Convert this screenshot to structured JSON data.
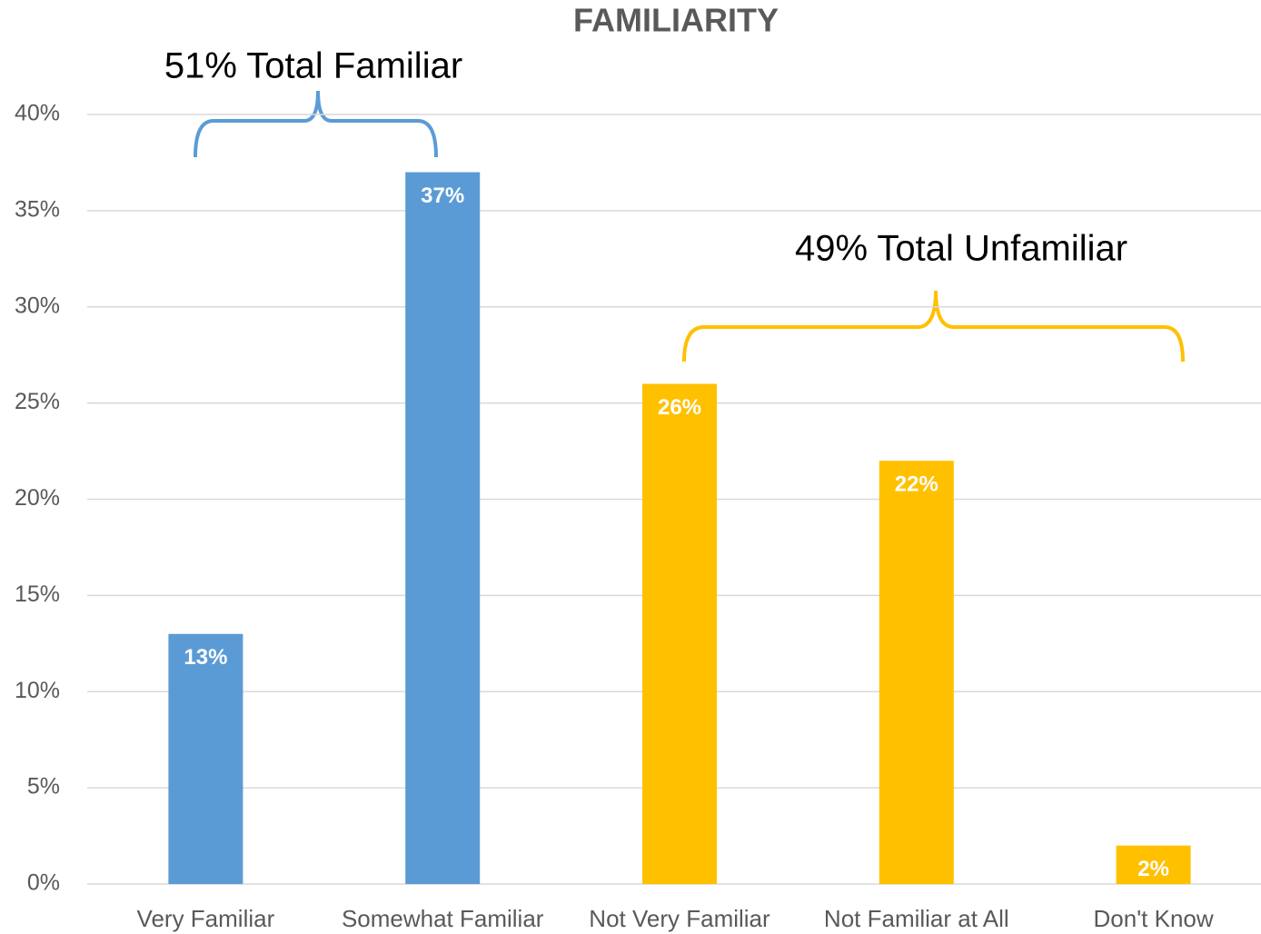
{
  "chart_data": {
    "type": "bar",
    "title": "FAMILIARITY",
    "categories": [
      "Very Familiar",
      "Somewhat Familiar",
      "Not Very Familiar",
      "Not Familiar at All",
      "Don't Know"
    ],
    "values": [
      13,
      37,
      26,
      22,
      2
    ],
    "value_labels": [
      "13%",
      "37%",
      "26%",
      "22%",
      "2%"
    ],
    "colors": [
      "#5b9bd5",
      "#5b9bd5",
      "#ffc000",
      "#ffc000",
      "#ffc000"
    ],
    "ylim": [
      0,
      40
    ],
    "yticks": [
      {
        "value": 0,
        "label": "0%"
      },
      {
        "value": 5,
        "label": "5%"
      },
      {
        "value": 10,
        "label": "10%"
      },
      {
        "value": 15,
        "label": "15%"
      },
      {
        "value": 20,
        "label": "20%"
      },
      {
        "value": 25,
        "label": "25%"
      },
      {
        "value": 30,
        "label": "30%"
      },
      {
        "value": 35,
        "label": "35%"
      },
      {
        "value": 40,
        "label": "40%"
      }
    ],
    "grid": true,
    "annotations": [
      "51% Total Familiar",
      "49% Total Unfamiliar"
    ]
  }
}
